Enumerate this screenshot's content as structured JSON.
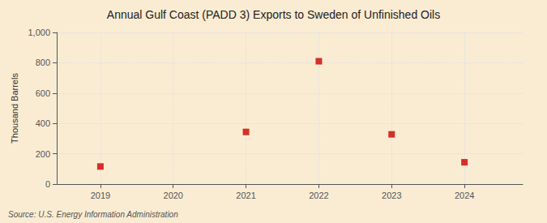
{
  "chart_data": {
    "type": "scatter",
    "title": "Annual Gulf Coast (PADD 3) Exports to Sweden of Unfinished Oils",
    "ylabel": "Thousand Barrels",
    "annotations": [
      "Source: U.S. Energy Information Administration"
    ],
    "x": [
      2019,
      2021,
      2022,
      2023,
      2024
    ],
    "values": [
      116,
      344,
      810,
      328,
      144
    ],
    "color": "#cc0000",
    "marker": "square",
    "xlim": [
      2018.4,
      2024.8
    ],
    "xticks": [
      2019,
      2020,
      2021,
      2022,
      2023,
      2024
    ],
    "ylim": [
      0,
      1000
    ],
    "yticks": [
      0,
      200,
      400,
      600,
      800,
      {
        "value": 1000,
        "label": "1,000"
      }
    ],
    "grid": true
  }
}
